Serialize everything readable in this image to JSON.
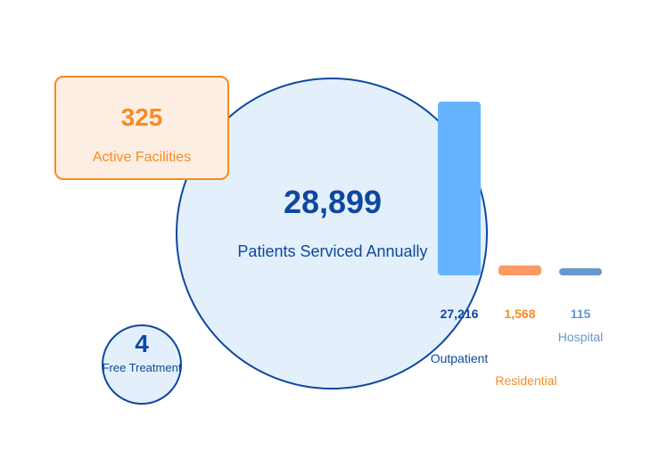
{
  "summary": {
    "patients_value": "28,899",
    "patients_label": "Patients Serviced Annually",
    "facilities_value": "325",
    "facilities_label": "Active Facilities",
    "free_value": "4",
    "free_label": "Free Treatment"
  },
  "colors": {
    "navy": "#0f47a1",
    "blue": "#66b3ff",
    "orange": "#f68b1f",
    "orange_light": "#ff9966",
    "steel": "#6699cc",
    "light_fill": "#e3f0fb"
  },
  "chart_data": {
    "type": "bar",
    "categories": [
      "Outpatient",
      "Residential",
      "Hospital"
    ],
    "values": [
      27216,
      1568,
      115
    ],
    "value_labels": [
      "27,216",
      "1,568",
      "115"
    ],
    "bar_colors": [
      "#66b3ff",
      "#ff9966",
      "#6699cc"
    ],
    "text_colors": [
      "#0f47a1",
      "#f68b1f",
      "#6699cc"
    ],
    "ylim": [
      0,
      27216
    ]
  }
}
